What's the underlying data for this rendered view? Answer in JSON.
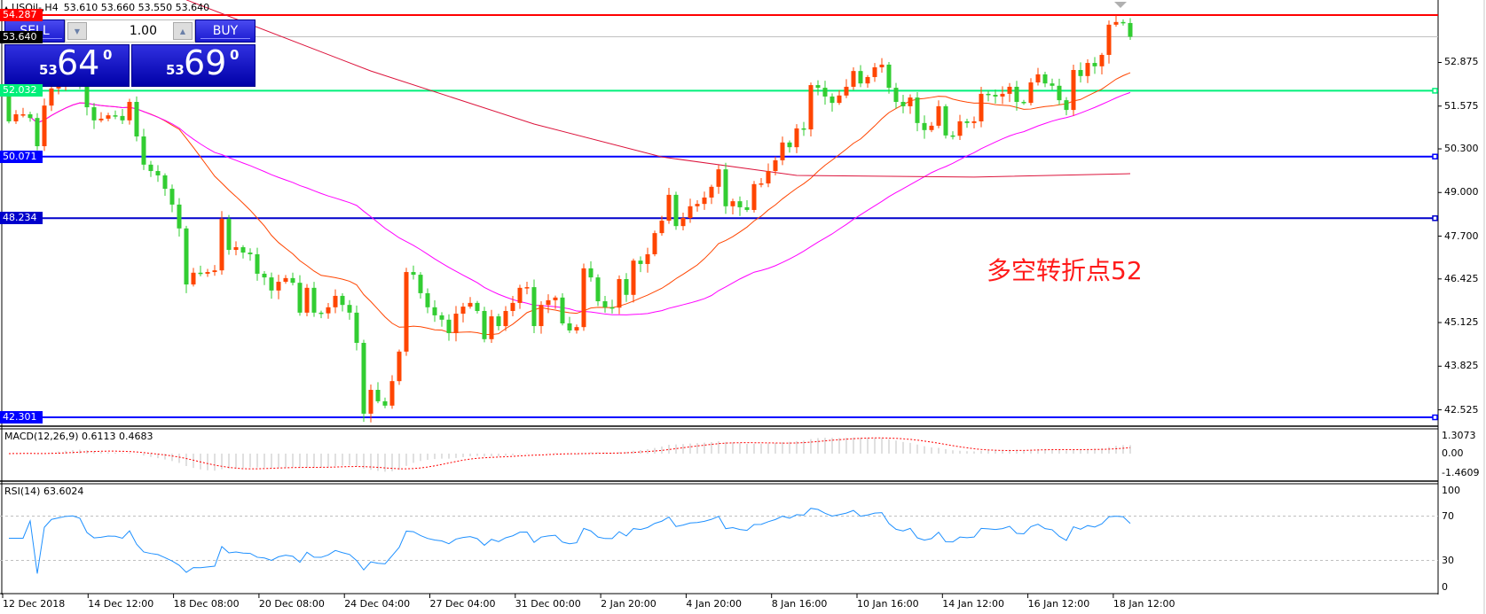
{
  "title": {
    "symbol": "USOil-,H4",
    "ohlc": "53.610 53.660 53.550 53.640"
  },
  "trade_panel": {
    "sell_label": "SELL",
    "buy_label": "BUY",
    "lot": "1.00",
    "sell_price": {
      "small": "53",
      "big": "64",
      "sup": "0"
    },
    "buy_price": {
      "small": "53",
      "big": "69",
      "sup": "0"
    }
  },
  "price_axis": {
    "ticks": [
      "52.875",
      "51.575",
      "50.300",
      "49.000",
      "47.700",
      "46.425",
      "45.125",
      "43.825",
      "42.525"
    ],
    "ylim": [
      42.301,
      54.287
    ]
  },
  "current_price": {
    "value": "53.640",
    "color": "#c0c0c0"
  },
  "levels": [
    {
      "value": "54.287",
      "color": "#ff0000"
    },
    {
      "value": "52.032",
      "color": "#00f07a"
    },
    {
      "value": "50.071",
      "color": "#0000ff"
    },
    {
      "value": "48.234",
      "color": "#0000cc"
    },
    {
      "value": "42.301",
      "color": "#0000ff"
    }
  ],
  "annotation": "多空转折点52",
  "chart_data": {
    "type": "candlestick",
    "up_color": "#ff4500",
    "down_color": "#32cd32",
    "ma_fast_color": "#ff4500",
    "ma_mid_color": "#ff00ff",
    "ma_long_color": "#dc143c",
    "first_open": 52.1,
    "closes": [
      51.12,
      51.33,
      51.33,
      51.22,
      50.38,
      51.59,
      52.1,
      52.23,
      52.36,
      52.41,
      52.31,
      51.54,
      51.15,
      51.2,
      51.3,
      51.28,
      51.15,
      51.7,
      50.67,
      49.83,
      49.64,
      49.51,
      49.11,
      48.64,
      47.93,
      46.26,
      46.61,
      46.58,
      46.63,
      46.68,
      48.22,
      47.29,
      47.37,
      47.21,
      47.16,
      46.58,
      46.47,
      46.08,
      46.34,
      46.45,
      46.31,
      45.42,
      46.16,
      45.42,
      45.4,
      45.58,
      45.92,
      45.65,
      45.42,
      44.52,
      42.41,
      43.12,
      42.78,
      42.65,
      43.38,
      44.26,
      46.63,
      46.55,
      46.0,
      45.58,
      45.34,
      45.21,
      44.81,
      45.39,
      45.6,
      45.71,
      45.47,
      44.63,
      45.31,
      45.02,
      45.47,
      45.71,
      46.16,
      46.18,
      45.02,
      45.65,
      45.79,
      45.87,
      45.1,
      44.89,
      44.99,
      46.74,
      46.47,
      45.76,
      45.58,
      45.57,
      46.42,
      45.95,
      46.97,
      46.87,
      47.16,
      47.79,
      48.16,
      48.93,
      48.0,
      48.24,
      48.59,
      48.66,
      48.85,
      49.17,
      49.69,
      48.59,
      48.74,
      48.56,
      48.48,
      49.25,
      49.27,
      49.64,
      49.96,
      50.49,
      50.35,
      50.91,
      50.88,
      52.2,
      52.12,
      51.86,
      51.67,
      51.89,
      52.15,
      52.62,
      52.25,
      52.44,
      52.73,
      52.81,
      52.12,
      51.7,
      51.57,
      51.83,
      51.07,
      50.86,
      50.99,
      51.57,
      50.7,
      50.69,
      51.12,
      51.07,
      51.12,
      51.94,
      51.91,
      51.86,
      51.94,
      52.15,
      51.7,
      51.67,
      52.28,
      52.52,
      52.25,
      52.18,
      51.75,
      51.46,
      52.65,
      52.47,
      52.86,
      52.76,
      53.1,
      54.0,
      54.08,
      54.05,
      53.64
    ],
    "ma_long": [
      [
        25,
        54.74
      ],
      [
        51,
        52.62
      ],
      [
        74,
        51.04
      ],
      [
        92,
        50.06
      ],
      [
        111,
        49.51
      ],
      [
        136,
        49.46
      ],
      [
        158,
        49.56
      ]
    ]
  },
  "macd": {
    "label": "MACD(12,26,9) 0.6113 0.4683",
    "ticks": [
      "1.3073",
      "0.00",
      "-1.4609"
    ],
    "range": [
      -1.4609,
      1.3073
    ],
    "signal_color": "#ff0000",
    "hist_color": "#c0c0c0"
  },
  "rsi": {
    "label": "RSI(14) 63.6024",
    "ticks": [
      "100",
      "70",
      "30",
      "0"
    ],
    "levels": [
      70,
      30
    ],
    "color": "#1e90ff"
  },
  "time_axis": {
    "labels": [
      "12 Dec 2018",
      "14 Dec 12:00",
      "18 Dec 08:00",
      "20 Dec 08:00",
      "24 Dec 04:00",
      "27 Dec 04:00",
      "31 Dec 00:00",
      "2 Jan 20:00",
      "4 Jan 20:00",
      "8 Jan 16:00",
      "10 Jan 16:00",
      "14 Jan 12:00",
      "16 Jan 12:00",
      "18 Jan 12:00"
    ]
  }
}
